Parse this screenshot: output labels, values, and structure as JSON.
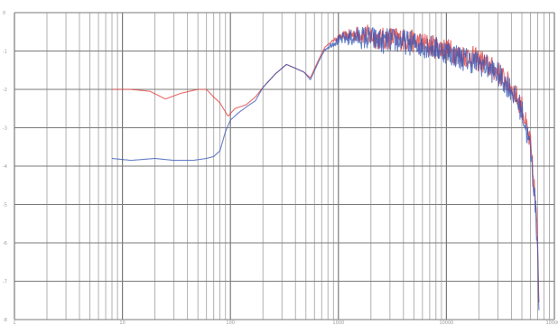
{
  "chart_data": {
    "type": "line",
    "title": "",
    "xlabel": "",
    "ylabel": "",
    "x_scale": "log",
    "xlim": [
      1,
      100000
    ],
    "ylim": [
      -8,
      0
    ],
    "grid": true,
    "legend": "none",
    "x_ticks": [
      {
        "value": 1,
        "label": "1"
      },
      {
        "value": 10,
        "label": "10"
      },
      {
        "value": 100,
        "label": "100"
      },
      {
        "value": 1000,
        "label": "1000"
      },
      {
        "value": 10000,
        "label": "10000"
      },
      {
        "value": 100000,
        "label": "100000"
      }
    ],
    "y_ticks": [
      {
        "value": 0,
        "label": "0"
      },
      {
        "value": -1,
        "label": "-1"
      },
      {
        "value": -2,
        "label": "-2"
      },
      {
        "value": -3,
        "label": "-3"
      },
      {
        "value": -4,
        "label": "-4"
      },
      {
        "value": -5,
        "label": "-5"
      },
      {
        "value": -6,
        "label": "-6"
      },
      {
        "value": -7,
        "label": "-7"
      },
      {
        "value": -8,
        "label": "-8"
      }
    ],
    "series": [
      {
        "color": "#e23838",
        "noise": 0.3,
        "noise_start": 800,
        "points": [
          [
            8,
            -2.0
          ],
          [
            12,
            -2.0
          ],
          [
            18,
            -2.05
          ],
          [
            25,
            -2.25
          ],
          [
            35,
            -2.1
          ],
          [
            50,
            -2.0
          ],
          [
            60,
            -2.0
          ],
          [
            70,
            -2.2
          ],
          [
            80,
            -2.35
          ],
          [
            95,
            -2.7
          ],
          [
            110,
            -2.5
          ],
          [
            140,
            -2.4
          ],
          [
            170,
            -2.2
          ],
          [
            200,
            -1.95
          ],
          [
            260,
            -1.6
          ],
          [
            330,
            -1.35
          ],
          [
            400,
            -1.45
          ],
          [
            480,
            -1.55
          ],
          [
            550,
            -1.7
          ],
          [
            650,
            -1.25
          ],
          [
            750,
            -0.9
          ],
          [
            900,
            -0.7
          ],
          [
            1100,
            -0.55
          ],
          [
            1300,
            -0.5
          ],
          [
            1500,
            -0.45
          ],
          [
            2000,
            -0.45
          ],
          [
            2500,
            -0.55
          ],
          [
            3000,
            -0.5
          ],
          [
            4000,
            -0.55
          ],
          [
            5000,
            -0.6
          ],
          [
            6000,
            -0.65
          ],
          [
            7000,
            -0.7
          ],
          [
            8000,
            -0.75
          ],
          [
            10000,
            -0.8
          ],
          [
            13000,
            -0.95
          ],
          [
            17000,
            -1.0
          ],
          [
            22000,
            -1.15
          ],
          [
            30000,
            -1.4
          ],
          [
            40000,
            -1.8
          ],
          [
            50000,
            -2.3
          ],
          [
            60000,
            -3.3
          ],
          [
            66000,
            -4.6
          ],
          [
            70000,
            -5.8
          ],
          [
            72000,
            -7.3
          ]
        ]
      },
      {
        "color": "#3454b4",
        "noise": 0.32,
        "noise_start": 700,
        "points": [
          [
            8,
            -3.8
          ],
          [
            12,
            -3.85
          ],
          [
            20,
            -3.8
          ],
          [
            30,
            -3.85
          ],
          [
            45,
            -3.85
          ],
          [
            60,
            -3.8
          ],
          [
            70,
            -3.75
          ],
          [
            80,
            -3.6
          ],
          [
            90,
            -3.1
          ],
          [
            100,
            -2.8
          ],
          [
            120,
            -2.6
          ],
          [
            150,
            -2.4
          ],
          [
            170,
            -2.3
          ],
          [
            200,
            -1.95
          ],
          [
            260,
            -1.6
          ],
          [
            330,
            -1.35
          ],
          [
            400,
            -1.45
          ],
          [
            480,
            -1.55
          ],
          [
            550,
            -1.75
          ],
          [
            650,
            -1.3
          ],
          [
            750,
            -0.95
          ],
          [
            900,
            -0.75
          ],
          [
            1100,
            -0.6
          ],
          [
            1300,
            -0.55
          ],
          [
            1500,
            -0.5
          ],
          [
            2000,
            -0.5
          ],
          [
            2500,
            -0.6
          ],
          [
            3000,
            -0.55
          ],
          [
            4000,
            -0.6
          ],
          [
            5000,
            -0.65
          ],
          [
            6000,
            -0.7
          ],
          [
            7000,
            -0.72
          ],
          [
            8000,
            -0.78
          ],
          [
            10000,
            -0.85
          ],
          [
            13000,
            -1.0
          ],
          [
            17000,
            -1.1
          ],
          [
            22000,
            -1.2
          ],
          [
            30000,
            -1.45
          ],
          [
            40000,
            -1.85
          ],
          [
            50000,
            -2.4
          ],
          [
            60000,
            -3.4
          ],
          [
            66000,
            -4.7
          ],
          [
            70000,
            -6.0
          ],
          [
            72000,
            -7.5
          ]
        ]
      }
    ]
  }
}
